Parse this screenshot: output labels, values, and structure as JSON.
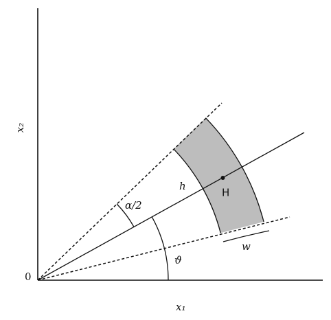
{
  "labels": {
    "x_axis": "x₁",
    "y_axis": "x₂",
    "origin": "0",
    "half_angle": "α/2",
    "angle": "ϑ",
    "height": "h",
    "point": "H",
    "width": "w"
  }
}
